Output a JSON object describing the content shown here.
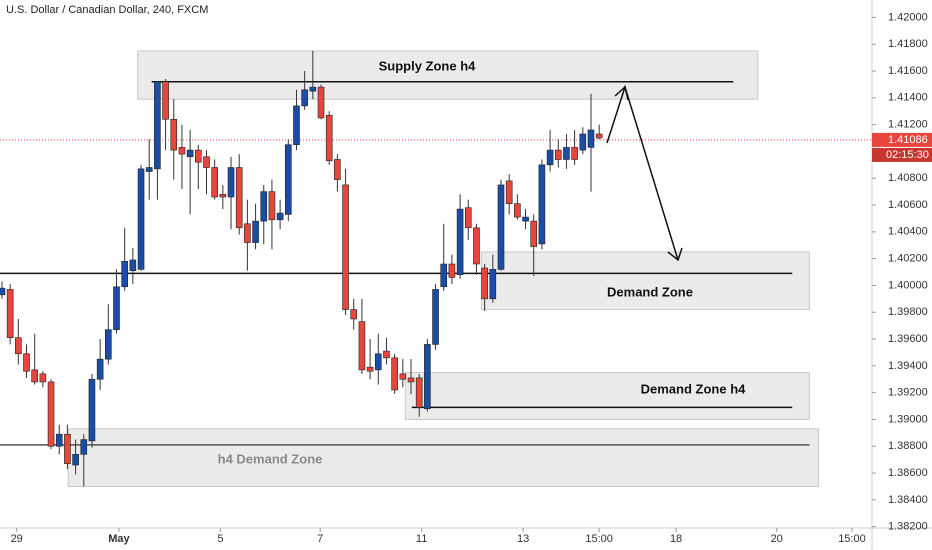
{
  "chart_data": {
    "type": "candlestick",
    "title": "U.S. Dollar / Canadian Dollar, 240, FXCM",
    "up_color": "#1a4ea6",
    "down_color": "#e8453c",
    "ylim": [
      1.3819,
      1.4213
    ],
    "yticks": [
      {
        "value": 1.382,
        "label": "1.38200"
      },
      {
        "value": 1.384,
        "label": "1.38400"
      },
      {
        "value": 1.386,
        "label": "1.38600"
      },
      {
        "value": 1.388,
        "label": "1.38800"
      },
      {
        "value": 1.39,
        "label": "1.39000"
      },
      {
        "value": 1.392,
        "label": "1.39200"
      },
      {
        "value": 1.394,
        "label": "1.39400"
      },
      {
        "value": 1.396,
        "label": "1.39600"
      },
      {
        "value": 1.398,
        "label": "1.39800"
      },
      {
        "value": 1.4,
        "label": "1.40000"
      },
      {
        "value": 1.402,
        "label": "1.40200"
      },
      {
        "value": 1.404,
        "label": "1.40400"
      },
      {
        "value": 1.406,
        "label": "1.40600"
      },
      {
        "value": 1.408,
        "label": "1.40800"
      },
      {
        "value": 1.412,
        "label": "1.41200"
      },
      {
        "value": 1.414,
        "label": "1.41400"
      },
      {
        "value": 1.416,
        "label": "1.41600"
      },
      {
        "value": 1.418,
        "label": "1.41800"
      },
      {
        "value": 1.42,
        "label": "1.42000"
      }
    ],
    "xlim": [
      -0.24,
      106.35
    ],
    "xticks": [
      {
        "value": 1.8,
        "label": "29"
      },
      {
        "value": 14.3,
        "label": "May"
      },
      {
        "value": 26.7,
        "label": "5"
      },
      {
        "value": 38.9,
        "label": "7"
      },
      {
        "value": 51.3,
        "label": "11"
      },
      {
        "value": 63.7,
        "label": "13"
      },
      {
        "value": 73,
        "label": "15:00"
      },
      {
        "value": 82.4,
        "label": "18"
      },
      {
        "value": 94.7,
        "label": "20"
      },
      {
        "value": 103.9,
        "label": "15:00"
      }
    ],
    "last_price": {
      "value": 1.41086,
      "label": "1.41086"
    },
    "countdown": "02:15:30",
    "candles": [
      {
        "open": 1.3993,
        "high": 1.4003,
        "low": 1.399,
        "close": 1.3998
      },
      {
        "open": 1.3997,
        "high": 1.4001,
        "low": 1.3956,
        "close": 1.3961
      },
      {
        "open": 1.3961,
        "high": 1.3975,
        "low": 1.3941,
        "close": 1.3949
      },
      {
        "open": 1.3949,
        "high": 1.3956,
        "low": 1.3931,
        "close": 1.3936
      },
      {
        "open": 1.3937,
        "high": 1.3964,
        "low": 1.3926,
        "close": 1.3928
      },
      {
        "open": 1.3934,
        "high": 1.3936,
        "low": 1.3924,
        "close": 1.3928
      },
      {
        "open": 1.3928,
        "high": 1.393,
        "low": 1.3878,
        "close": 1.388
      },
      {
        "open": 1.388,
        "high": 1.3896,
        "low": 1.3874,
        "close": 1.3889
      },
      {
        "open": 1.3889,
        "high": 1.3896,
        "low": 1.3863,
        "close": 1.3867
      },
      {
        "open": 1.3866,
        "high": 1.3885,
        "low": 1.3859,
        "close": 1.3874
      },
      {
        "open": 1.3874,
        "high": 1.3889,
        "low": 1.385,
        "close": 1.3885
      },
      {
        "open": 1.3884,
        "high": 1.3934,
        "low": 1.3879,
        "close": 1.393
      },
      {
        "open": 1.393,
        "high": 1.396,
        "low": 1.3922,
        "close": 1.3945
      },
      {
        "open": 1.3945,
        "high": 1.3986,
        "low": 1.3941,
        "close": 1.3967
      },
      {
        "open": 1.3967,
        "high": 1.4012,
        "low": 1.3964,
        "close": 1.3999
      },
      {
        "open": 1.3999,
        "high": 1.4043,
        "low": 1.3996,
        "close": 1.4018
      },
      {
        "open": 1.4011,
        "high": 1.4028,
        "low": 1.4001,
        "close": 1.4019
      },
      {
        "open": 1.4012,
        "high": 1.409,
        "low": 1.4011,
        "close": 1.4087
      },
      {
        "open": 1.4085,
        "high": 1.4109,
        "low": 1.4064,
        "close": 1.4088
      },
      {
        "open": 1.4087,
        "high": 1.4152,
        "low": 1.4064,
        "close": 1.4152
      },
      {
        "open": 1.4152,
        "high": 1.4154,
        "low": 1.4101,
        "close": 1.4124
      },
      {
        "open": 1.4124,
        "high": 1.4139,
        "low": 1.4079,
        "close": 1.4101
      },
      {
        "open": 1.4103,
        "high": 1.412,
        "low": 1.4072,
        "close": 1.4098
      },
      {
        "open": 1.4096,
        "high": 1.4116,
        "low": 1.4053,
        "close": 1.4101
      },
      {
        "open": 1.4101,
        "high": 1.4105,
        "low": 1.4072,
        "close": 1.4092
      },
      {
        "open": 1.4096,
        "high": 1.4101,
        "low": 1.4068,
        "close": 1.4088
      },
      {
        "open": 1.4088,
        "high": 1.4094,
        "low": 1.4064,
        "close": 1.4066
      },
      {
        "open": 1.4068,
        "high": 1.4075,
        "low": 1.4057,
        "close": 1.4066
      },
      {
        "open": 1.4066,
        "high": 1.4096,
        "low": 1.4042,
        "close": 1.4088
      },
      {
        "open": 1.4088,
        "high": 1.4098,
        "low": 1.4038,
        "close": 1.4043
      },
      {
        "open": 1.4046,
        "high": 1.4064,
        "low": 1.4011,
        "close": 1.4032
      },
      {
        "open": 1.4032,
        "high": 1.4061,
        "low": 1.4027,
        "close": 1.4048
      },
      {
        "open": 1.4048,
        "high": 1.4075,
        "low": 1.4031,
        "close": 1.407
      },
      {
        "open": 1.407,
        "high": 1.4079,
        "low": 1.4027,
        "close": 1.4049
      },
      {
        "open": 1.4049,
        "high": 1.4064,
        "low": 1.4042,
        "close": 1.4054
      },
      {
        "open": 1.4053,
        "high": 1.4109,
        "low": 1.4048,
        "close": 1.4105
      },
      {
        "open": 1.4105,
        "high": 1.4146,
        "low": 1.4101,
        "close": 1.4134
      },
      {
        "open": 1.4134,
        "high": 1.416,
        "low": 1.4131,
        "close": 1.4146
      },
      {
        "open": 1.4145,
        "high": 1.4175,
        "low": 1.4139,
        "close": 1.4148
      },
      {
        "open": 1.4148,
        "high": 1.415,
        "low": 1.4124,
        "close": 1.4125
      },
      {
        "open": 1.4127,
        "high": 1.413,
        "low": 1.409,
        "close": 1.4093
      },
      {
        "open": 1.4094,
        "high": 1.4098,
        "low": 1.407,
        "close": 1.4079
      },
      {
        "open": 1.4075,
        "high": 1.4087,
        "low": 1.3978,
        "close": 1.3982
      },
      {
        "open": 1.3982,
        "high": 1.399,
        "low": 1.3967,
        "close": 1.3975
      },
      {
        "open": 1.3973,
        "high": 1.399,
        "low": 1.3934,
        "close": 1.3937
      },
      {
        "open": 1.3939,
        "high": 1.396,
        "low": 1.393,
        "close": 1.3936
      },
      {
        "open": 1.3937,
        "high": 1.3964,
        "low": 1.3926,
        "close": 1.3949
      },
      {
        "open": 1.3951,
        "high": 1.3961,
        "low": 1.3941,
        "close": 1.3946
      },
      {
        "open": 1.3946,
        "high": 1.3949,
        "low": 1.3919,
        "close": 1.3922
      },
      {
        "open": 1.3934,
        "high": 1.3945,
        "low": 1.3924,
        "close": 1.393
      },
      {
        "open": 1.3931,
        "high": 1.3945,
        "low": 1.3919,
        "close": 1.3928
      },
      {
        "open": 1.3931,
        "high": 1.3934,
        "low": 1.3902,
        "close": 1.3909
      },
      {
        "open": 1.3908,
        "high": 1.396,
        "low": 1.3906,
        "close": 1.3956
      },
      {
        "open": 1.3956,
        "high": 1.4001,
        "low": 1.3952,
        "close": 1.3997
      },
      {
        "open": 1.3999,
        "high": 1.4046,
        "low": 1.3996,
        "close": 1.4016
      },
      {
        "open": 1.4016,
        "high": 1.4023,
        "low": 1.4001,
        "close": 1.4006
      },
      {
        "open": 1.4008,
        "high": 1.4068,
        "low": 1.4005,
        "close": 1.4057
      },
      {
        "open": 1.4058,
        "high": 1.4064,
        "low": 1.4034,
        "close": 1.4043
      },
      {
        "open": 1.4043,
        "high": 1.4046,
        "low": 1.4008,
        "close": 1.4016
      },
      {
        "open": 1.4013,
        "high": 1.4016,
        "low": 1.3981,
        "close": 1.399
      },
      {
        "open": 1.399,
        "high": 1.4023,
        "low": 1.3987,
        "close": 1.4012
      },
      {
        "open": 1.4012,
        "high": 1.4079,
        "low": 1.4011,
        "close": 1.4075
      },
      {
        "open": 1.4078,
        "high": 1.4083,
        "low": 1.4053,
        "close": 1.4061
      },
      {
        "open": 1.4061,
        "high": 1.4068,
        "low": 1.4049,
        "close": 1.4051
      },
      {
        "open": 1.4048,
        "high": 1.4057,
        "low": 1.4042,
        "close": 1.4051
      },
      {
        "open": 1.4048,
        "high": 1.4053,
        "low": 1.4007,
        "close": 1.4029
      },
      {
        "open": 1.4031,
        "high": 1.4094,
        "low": 1.4027,
        "close": 1.409
      },
      {
        "open": 1.409,
        "high": 1.4116,
        "low": 1.4085,
        "close": 1.4101
      },
      {
        "open": 1.4101,
        "high": 1.4109,
        "low": 1.4088,
        "close": 1.4094
      },
      {
        "open": 1.4094,
        "high": 1.4113,
        "low": 1.4087,
        "close": 1.4103
      },
      {
        "open": 1.4103,
        "high": 1.4116,
        "low": 1.409,
        "close": 1.4094
      },
      {
        "open": 1.4101,
        "high": 1.4118,
        "low": 1.4098,
        "close": 1.4113
      },
      {
        "open": 1.4103,
        "high": 1.4143,
        "low": 1.407,
        "close": 1.4116
      },
      {
        "open": 1.4113,
        "high": 1.412,
        "low": 1.4109,
        "close": 1.411
      }
    ],
    "zones": [
      {
        "label": "Supply Zone h4",
        "x": [
          16.6,
          92.4
        ],
        "y": [
          1.4139,
          1.4175
        ],
        "line": {
          "value": 1.4152,
          "x": [
            18.3,
            89.4
          ],
          "color": "#111111"
        }
      },
      {
        "label": "Demand Zone",
        "x": [
          58.6,
          98.7
        ],
        "y": [
          1.3982,
          1.4025
        ]
      },
      {
        "label": "Demand Zone h4",
        "x": [
          49.3,
          98.7
        ],
        "y": [
          1.39,
          1.3935
        ],
        "line": {
          "value": 1.3909,
          "x": [
            50.1,
            96.6
          ],
          "color": "#111111"
        }
      },
      {
        "label": "h4 Demand Zone",
        "x": [
          8.1,
          99.8
        ],
        "y": [
          1.385,
          1.3893
        ],
        "line": {
          "value": 1.3881,
          "x": [
            -0.24,
            98.7
          ],
          "color": "#555555"
        }
      }
    ],
    "lines": [
      {
        "value": 1.4009,
        "x": [
          -0.24,
          96.6
        ],
        "color": "#111111"
      }
    ]
  }
}
